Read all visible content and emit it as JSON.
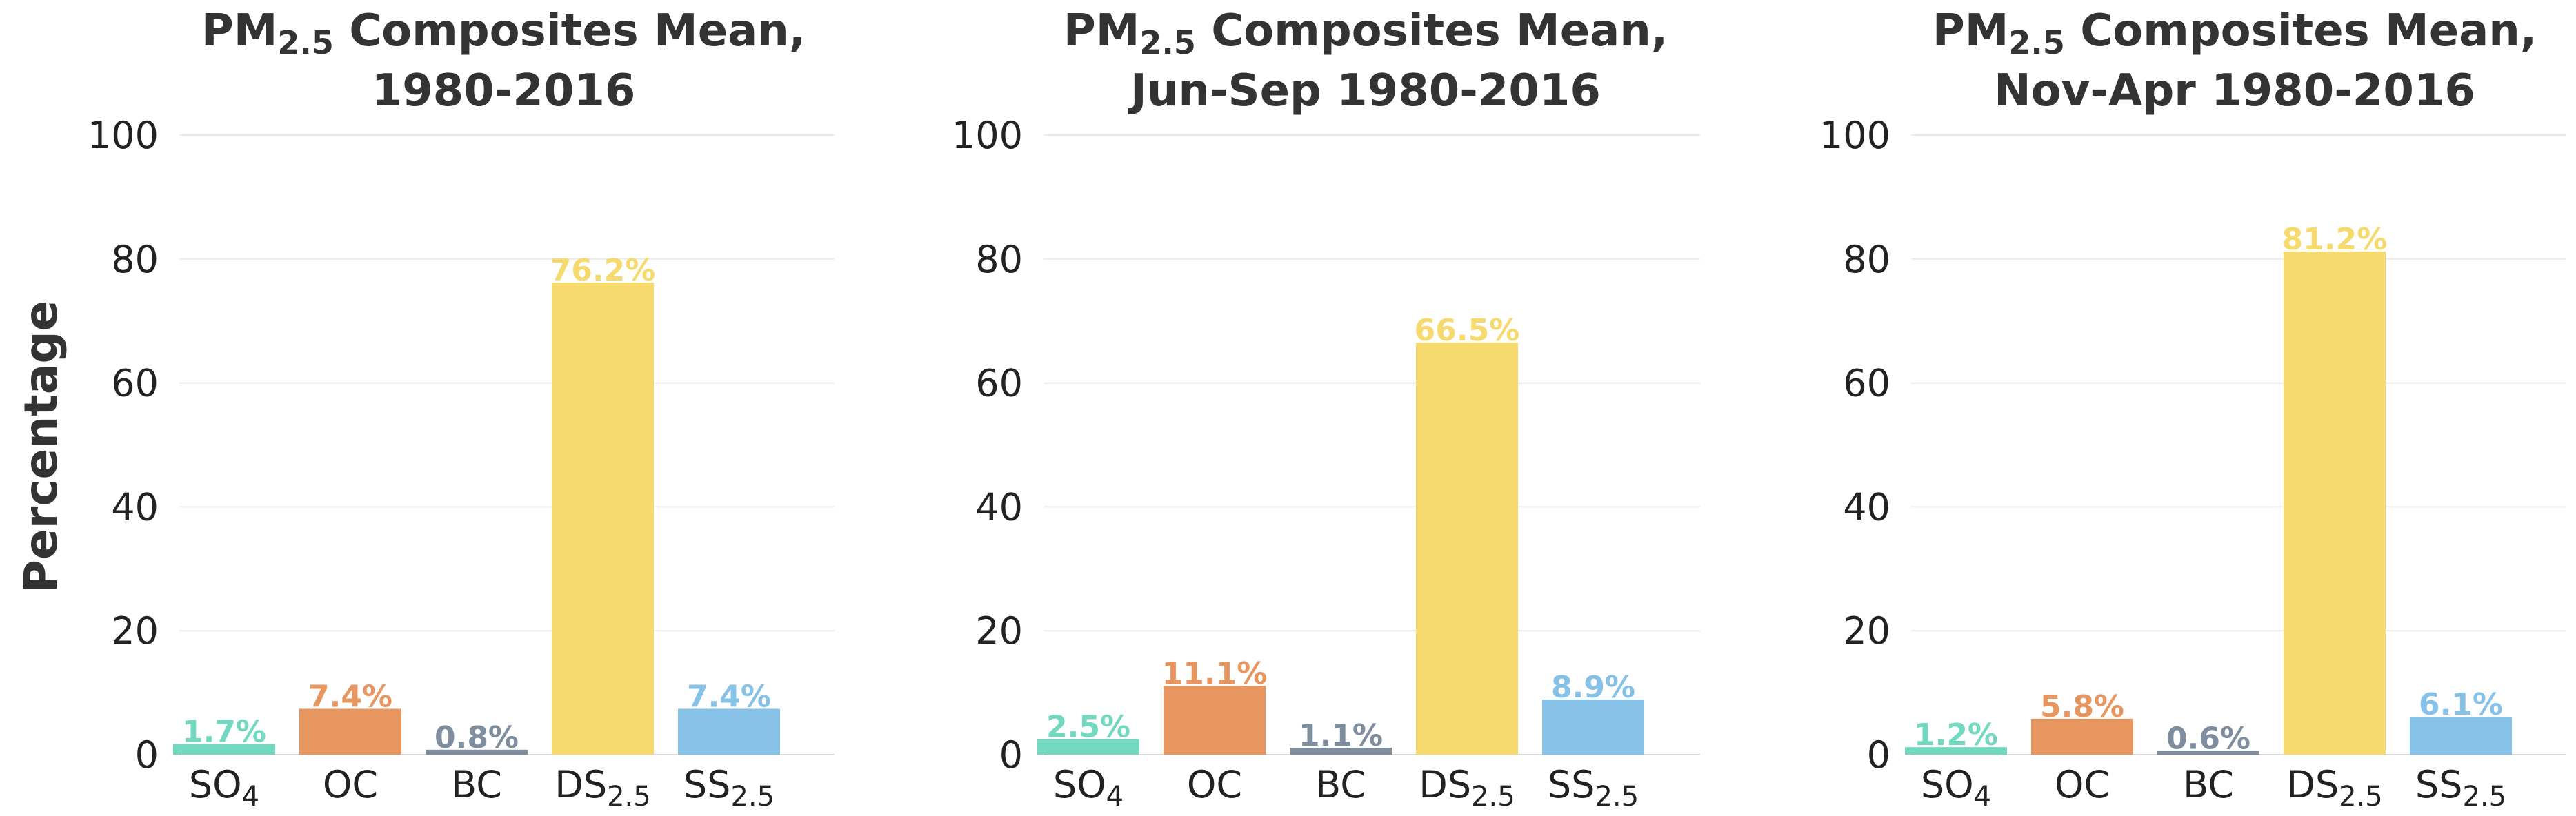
{
  "ylabel": "Percentage",
  "colors": {
    "SO4": "#72d8bf",
    "OC": "#e8965f",
    "BC": "#7f8e9e",
    "DS25": "#f7da6e",
    "SS25": "#86c1e8"
  },
  "chart_data": [
    {
      "type": "bar",
      "title_lines": [
        {
          "parts": [
            {
              "text": "PM"
            },
            {
              "text": "2.5",
              "sub": true
            },
            {
              "text": " Composites Mean,"
            }
          ]
        },
        {
          "parts": [
            {
              "text": "1980-2016"
            }
          ]
        }
      ],
      "ylabel": "Percentage",
      "ylim": [
        0,
        100
      ],
      "yticks": [
        "0",
        "20",
        "40",
        "60",
        "80",
        "100"
      ],
      "grid": true,
      "categories": [
        {
          "key": "SO4",
          "base": "SO",
          "sub": "4"
        },
        {
          "key": "OC",
          "base": "OC",
          "sub": ""
        },
        {
          "key": "BC",
          "base": "BC",
          "sub": ""
        },
        {
          "key": "DS25",
          "base": "DS",
          "sub": "2.5"
        },
        {
          "key": "SS25",
          "base": "SS",
          "sub": "2.5"
        }
      ],
      "values": [
        1.7,
        7.4,
        0.8,
        76.2,
        7.4
      ],
      "labels": [
        "1.7%",
        "7.4%",
        "0.8%",
        "76.2%",
        "7.4%"
      ]
    },
    {
      "type": "bar",
      "title_lines": [
        {
          "parts": [
            {
              "text": "PM"
            },
            {
              "text": "2.5",
              "sub": true
            },
            {
              "text": " Composites Mean,"
            }
          ]
        },
        {
          "parts": [
            {
              "text": "Jun-Sep 1980-2016"
            }
          ]
        }
      ],
      "ylabel": "",
      "ylim": [
        0,
        100
      ],
      "yticks": [
        "0",
        "20",
        "40",
        "60",
        "80",
        "100"
      ],
      "grid": true,
      "categories": [
        {
          "key": "SO4",
          "base": "SO",
          "sub": "4"
        },
        {
          "key": "OC",
          "base": "OC",
          "sub": ""
        },
        {
          "key": "BC",
          "base": "BC",
          "sub": ""
        },
        {
          "key": "DS25",
          "base": "DS",
          "sub": "2.5"
        },
        {
          "key": "SS25",
          "base": "SS",
          "sub": "2.5"
        }
      ],
      "values": [
        2.5,
        11.1,
        1.1,
        66.5,
        8.9
      ],
      "labels": [
        "2.5%",
        "11.1%",
        "1.1%",
        "66.5%",
        "8.9%"
      ]
    },
    {
      "type": "bar",
      "title_lines": [
        {
          "parts": [
            {
              "text": "PM"
            },
            {
              "text": "2.5",
              "sub": true
            },
            {
              "text": " Composites Mean,"
            }
          ]
        },
        {
          "parts": [
            {
              "text": "Nov-Apr 1980-2016"
            }
          ]
        }
      ],
      "ylabel": "",
      "ylim": [
        0,
        100
      ],
      "yticks": [
        "0",
        "20",
        "40",
        "60",
        "80",
        "100"
      ],
      "grid": true,
      "categories": [
        {
          "key": "SO4",
          "base": "SO",
          "sub": "4"
        },
        {
          "key": "OC",
          "base": "OC",
          "sub": ""
        },
        {
          "key": "BC",
          "base": "BC",
          "sub": ""
        },
        {
          "key": "DS25",
          "base": "DS",
          "sub": "2.5"
        },
        {
          "key": "SS25",
          "base": "SS",
          "sub": "2.5"
        }
      ],
      "values": [
        1.2,
        5.8,
        0.6,
        81.2,
        6.1
      ],
      "labels": [
        "1.2%",
        "5.8%",
        "0.6%",
        "81.2%",
        "6.1%"
      ]
    }
  ]
}
